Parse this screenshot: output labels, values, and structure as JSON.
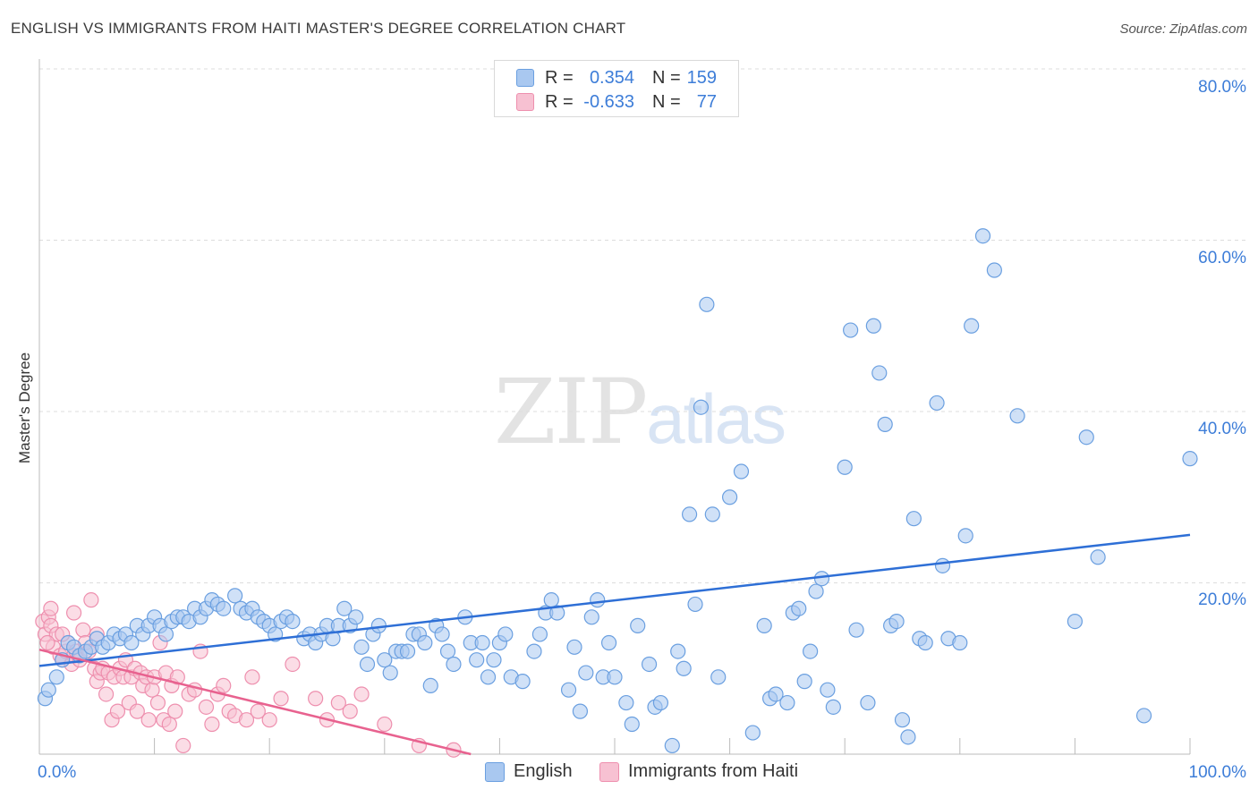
{
  "title": "ENGLISH VS IMMIGRANTS FROM HAITI MASTER'S DEGREE CORRELATION CHART",
  "source": "Source: ZipAtlas.com",
  "watermark": {
    "zip": "ZIP",
    "atlas": "atlas"
  },
  "colors": {
    "blue": "#6a9fe0",
    "blue_fill": "#a9c8f0",
    "blue_line": "#2e6fd6",
    "pink": "#ee8fae",
    "pink_fill": "#f7c1d2",
    "pink_line": "#e8628f",
    "axis_text": "#3d7dd8",
    "grid": "#dddddd"
  },
  "legend_top": {
    "rows": [
      {
        "r_label": "R =",
        "r_value": "0.354",
        "n_label": "N =",
        "n_value": "159"
      },
      {
        "r_label": "R =",
        "r_value": "-0.633",
        "n_label": "N =",
        "n_value": "77"
      }
    ]
  },
  "legend_bottom": {
    "english": "English",
    "haiti": "Immigrants from Haiti"
  },
  "chart_data": {
    "type": "scatter",
    "title": "ENGLISH VS IMMIGRANTS FROM HAITI MASTER'S DEGREE CORRELATION CHART",
    "xlabel": "",
    "ylabel": "Master's Degree",
    "xlim": [
      0,
      100
    ],
    "ylim": [
      0,
      80
    ],
    "x_tick_labels": [
      "0.0%",
      "100.0%"
    ],
    "y_tick_labels": [
      "20.0%",
      "40.0%",
      "60.0%",
      "80.0%"
    ],
    "y_ticks": [
      20,
      40,
      60,
      80
    ],
    "grid": true,
    "series": [
      {
        "name": "English",
        "r": 0.354,
        "n": 159,
        "trend": {
          "x": [
            0,
            100
          ],
          "y": [
            10.3,
            25.6
          ]
        },
        "points": [
          [
            0.5,
            6.5
          ],
          [
            0.8,
            7.5
          ],
          [
            1.5,
            9
          ],
          [
            2,
            11
          ],
          [
            2.5,
            13
          ],
          [
            3,
            12.5
          ],
          [
            3.5,
            11.5
          ],
          [
            4,
            12
          ],
          [
            4.5,
            12.5
          ],
          [
            5,
            13.5
          ],
          [
            5.5,
            12.5
          ],
          [
            6,
            13
          ],
          [
            6.5,
            14
          ],
          [
            7,
            13.5
          ],
          [
            7.5,
            14
          ],
          [
            8,
            13
          ],
          [
            8.5,
            15
          ],
          [
            9,
            14
          ],
          [
            9.5,
            15
          ],
          [
            10,
            16
          ],
          [
            10.5,
            15
          ],
          [
            11,
            14
          ],
          [
            11.5,
            15.5
          ],
          [
            12,
            16
          ],
          [
            12.5,
            16
          ],
          [
            13,
            15.5
          ],
          [
            13.5,
            17
          ],
          [
            14,
            16
          ],
          [
            14.5,
            17
          ],
          [
            15,
            18
          ],
          [
            15.5,
            17.5
          ],
          [
            16,
            17
          ],
          [
            17,
            18.5
          ],
          [
            17.5,
            17
          ],
          [
            18,
            16.5
          ],
          [
            18.5,
            17
          ],
          [
            19,
            16
          ],
          [
            19.5,
            15.5
          ],
          [
            20,
            15
          ],
          [
            20.5,
            14
          ],
          [
            21,
            15.5
          ],
          [
            21.5,
            16
          ],
          [
            22,
            15.5
          ],
          [
            23,
            13.5
          ],
          [
            23.5,
            14
          ],
          [
            24,
            13
          ],
          [
            24.5,
            14
          ],
          [
            25,
            15
          ],
          [
            25.5,
            13.5
          ],
          [
            26,
            15
          ],
          [
            26.5,
            17
          ],
          [
            27,
            15
          ],
          [
            27.5,
            16
          ],
          [
            28,
            12.5
          ],
          [
            28.5,
            10.5
          ],
          [
            29,
            14
          ],
          [
            29.5,
            15
          ],
          [
            30,
            11
          ],
          [
            30.5,
            9.5
          ],
          [
            31,
            12
          ],
          [
            31.5,
            12
          ],
          [
            32,
            12
          ],
          [
            32.5,
            14
          ],
          [
            33,
            14
          ],
          [
            33.5,
            13
          ],
          [
            34,
            8
          ],
          [
            34.5,
            15
          ],
          [
            35,
            14
          ],
          [
            35.5,
            12
          ],
          [
            36,
            10.5
          ],
          [
            37,
            16
          ],
          [
            37.5,
            13
          ],
          [
            38,
            11
          ],
          [
            38.5,
            13
          ],
          [
            39,
            9
          ],
          [
            39.5,
            11
          ],
          [
            40,
            13
          ],
          [
            40.5,
            14
          ],
          [
            41,
            9
          ],
          [
            42,
            8.5
          ],
          [
            43,
            12
          ],
          [
            43.5,
            14
          ],
          [
            44,
            16.5
          ],
          [
            44.5,
            18
          ],
          [
            45,
            16.5
          ],
          [
            46,
            7.5
          ],
          [
            46.5,
            12.5
          ],
          [
            47,
            5
          ],
          [
            47.5,
            9.5
          ],
          [
            48,
            16
          ],
          [
            48.5,
            18
          ],
          [
            49,
            9
          ],
          [
            49.5,
            13
          ],
          [
            50,
            9
          ],
          [
            51,
            6
          ],
          [
            51.5,
            3.5
          ],
          [
            52,
            15
          ],
          [
            53,
            10.5
          ],
          [
            53.5,
            5.5
          ],
          [
            54,
            6
          ],
          [
            55,
            1
          ],
          [
            55.5,
            12
          ],
          [
            56,
            10
          ],
          [
            56.5,
            28
          ],
          [
            57,
            17.5
          ],
          [
            57.5,
            40.5
          ],
          [
            58,
            52.5
          ],
          [
            58.5,
            28
          ],
          [
            59,
            9
          ],
          [
            60,
            30
          ],
          [
            61,
            33
          ],
          [
            62,
            2.5
          ],
          [
            63,
            15
          ],
          [
            63.5,
            6.5
          ],
          [
            64,
            7
          ],
          [
            65,
            6
          ],
          [
            65.5,
            16.5
          ],
          [
            66,
            17
          ],
          [
            66.5,
            8.5
          ],
          [
            67,
            12
          ],
          [
            67.5,
            19
          ],
          [
            68,
            20.5
          ],
          [
            68.5,
            7.5
          ],
          [
            69,
            5.5
          ],
          [
            70,
            33.5
          ],
          [
            70.5,
            49.5
          ],
          [
            71,
            14.5
          ],
          [
            72,
            6
          ],
          [
            72.5,
            50
          ],
          [
            73,
            44.5
          ],
          [
            73.5,
            38.5
          ],
          [
            74,
            15
          ],
          [
            74.5,
            15.5
          ],
          [
            75,
            4
          ],
          [
            75.5,
            2
          ],
          [
            76,
            27.5
          ],
          [
            76.5,
            13.5
          ],
          [
            77,
            13
          ],
          [
            78,
            41
          ],
          [
            78.5,
            22
          ],
          [
            79,
            13.5
          ],
          [
            80,
            13
          ],
          [
            80.5,
            25.5
          ],
          [
            81,
            50
          ],
          [
            82,
            60.5
          ],
          [
            83,
            56.5
          ],
          [
            85,
            39.5
          ],
          [
            90,
            15.5
          ],
          [
            91,
            37
          ],
          [
            92,
            23
          ],
          [
            96,
            4.5
          ],
          [
            100,
            34.5
          ]
        ]
      },
      {
        "name": "Immigrants from Haiti",
        "r": -0.633,
        "n": 77,
        "trend": {
          "x": [
            0,
            37.5
          ],
          "y": [
            12.2,
            0
          ]
        },
        "points": [
          [
            0.3,
            15.5
          ],
          [
            0.5,
            14
          ],
          [
            0.8,
            16
          ],
          [
            1,
            15
          ],
          [
            1.2,
            12.5
          ],
          [
            1.5,
            14
          ],
          [
            1.8,
            11.5
          ],
          [
            2,
            11
          ],
          [
            2.3,
            12
          ],
          [
            2.5,
            13
          ],
          [
            2.8,
            10.5
          ],
          [
            3,
            11.5
          ],
          [
            3.2,
            12
          ],
          [
            3.5,
            11
          ],
          [
            3.8,
            14.5
          ],
          [
            4,
            13
          ],
          [
            4.3,
            12
          ],
          [
            4.5,
            18
          ],
          [
            4.8,
            10
          ],
          [
            5,
            8.5
          ],
          [
            5.3,
            9.5
          ],
          [
            5.5,
            10
          ],
          [
            5.8,
            7
          ],
          [
            6,
            9.5
          ],
          [
            6.3,
            4
          ],
          [
            6.5,
            9
          ],
          [
            6.8,
            5
          ],
          [
            7,
            10
          ],
          [
            7.3,
            9
          ],
          [
            7.5,
            11
          ],
          [
            7.8,
            6
          ],
          [
            8,
            9
          ],
          [
            8.3,
            10
          ],
          [
            8.5,
            5
          ],
          [
            8.8,
            9.5
          ],
          [
            9,
            8
          ],
          [
            9.3,
            9
          ],
          [
            9.5,
            4
          ],
          [
            9.8,
            7.5
          ],
          [
            10,
            9
          ],
          [
            10.3,
            6
          ],
          [
            10.5,
            13
          ],
          [
            10.8,
            4
          ],
          [
            11,
            9.5
          ],
          [
            11.3,
            3.5
          ],
          [
            11.5,
            8
          ],
          [
            11.8,
            5
          ],
          [
            12,
            9
          ],
          [
            12.5,
            1
          ],
          [
            13,
            7
          ],
          [
            13.5,
            7.5
          ],
          [
            14,
            12
          ],
          [
            14.5,
            5.5
          ],
          [
            15,
            3.5
          ],
          [
            15.5,
            7
          ],
          [
            16,
            8
          ],
          [
            16.5,
            5
          ],
          [
            17,
            4.5
          ],
          [
            18,
            4
          ],
          [
            18.5,
            9
          ],
          [
            19,
            5
          ],
          [
            20,
            4
          ],
          [
            21,
            6.5
          ],
          [
            22,
            10.5
          ],
          [
            24,
            6.5
          ],
          [
            25,
            4
          ],
          [
            26,
            6
          ],
          [
            27,
            5
          ],
          [
            28,
            7
          ],
          [
            30,
            3.5
          ],
          [
            33,
            1
          ],
          [
            36,
            0.5
          ],
          [
            1,
            17
          ],
          [
            2,
            14
          ],
          [
            3,
            16.5
          ],
          [
            0.7,
            13
          ],
          [
            5,
            14
          ]
        ]
      }
    ]
  }
}
